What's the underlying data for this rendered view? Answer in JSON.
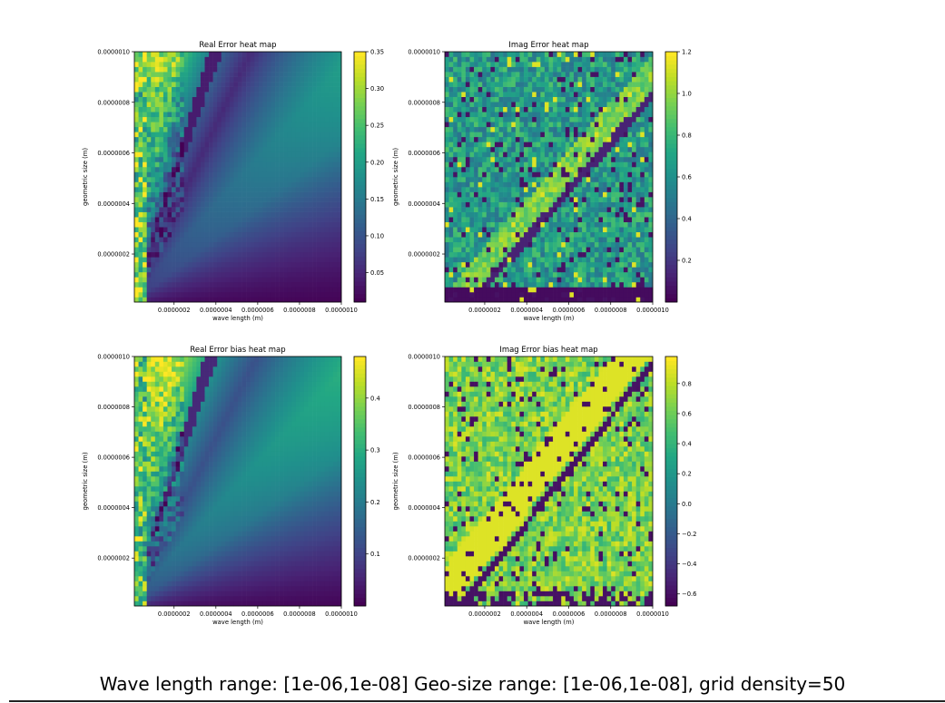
{
  "figure": {
    "caption": "Wave length range: [1e-06,1e-08] Geo-size range: [1e-06,1e-08], grid density=50"
  },
  "chart_data": [
    {
      "type": "heatmap",
      "title": "Real Error heat map",
      "xlabel": "wave length (m)",
      "ylabel": "geometric size (m)",
      "xlim": [
        1e-08,
        1e-06
      ],
      "ylim": [
        1e-08,
        1e-06
      ],
      "x_ticks": [
        "0.0000002",
        "0.0000004",
        "0.0000006",
        "0.0000008",
        "0.0000010"
      ],
      "y_ticks": [
        "0.0000002",
        "0.0000004",
        "0.0000006",
        "0.0000008",
        "0.0000010"
      ],
      "grid_density": 50,
      "colormap": "viridis",
      "colorbar": {
        "range": [
          0.01,
          0.35
        ],
        "ticks": [
          "0.05",
          "0.10",
          "0.15",
          "0.20",
          "0.25",
          "0.30",
          "0.35"
        ]
      }
    },
    {
      "type": "heatmap",
      "title": "Imag Error heat map",
      "xlabel": "wave length (m)",
      "ylabel": "geometric size (m)",
      "xlim": [
        1e-08,
        1e-06
      ],
      "ylim": [
        1e-08,
        1e-06
      ],
      "x_ticks": [
        "0.0000002",
        "0.0000004",
        "0.0000006",
        "0.0000008",
        "0.0000010"
      ],
      "y_ticks": [
        "0.0000002",
        "0.0000004",
        "0.0000006",
        "0.0000008",
        "0.0000010"
      ],
      "grid_density": 50,
      "colormap": "viridis",
      "colorbar": {
        "range": [
          0.0,
          1.2
        ],
        "ticks": [
          "0.2",
          "0.4",
          "0.6",
          "0.8",
          "1.0",
          "1.2"
        ]
      }
    },
    {
      "type": "heatmap",
      "title": "Real Error bias heat map",
      "xlabel": "wave length (m)",
      "ylabel": "geometric size (m)",
      "xlim": [
        1e-08,
        1e-06
      ],
      "ylim": [
        1e-08,
        1e-06
      ],
      "x_ticks": [
        "0.0000002",
        "0.0000004",
        "0.0000006",
        "0.0000008",
        "0.0000010"
      ],
      "y_ticks": [
        "0.0000002",
        "0.0000004",
        "0.0000006",
        "0.0000008",
        "0.0000010"
      ],
      "grid_density": 50,
      "colormap": "viridis",
      "colorbar": {
        "range": [
          0.0,
          0.48
        ],
        "ticks": [
          "0.1",
          "0.2",
          "0.3",
          "0.4"
        ]
      }
    },
    {
      "type": "heatmap",
      "title": "Imag Error bias heat map",
      "xlabel": "wave length (m)",
      "ylabel": "geometric size (m)",
      "xlim": [
        1e-08,
        1e-06
      ],
      "ylim": [
        1e-08,
        1e-06
      ],
      "x_ticks": [
        "0.0000002",
        "0.0000004",
        "0.0000006",
        "0.0000008",
        "0.0000010"
      ],
      "y_ticks": [
        "0.0000002",
        "0.0000004",
        "0.0000006",
        "0.0000008",
        "0.0000010"
      ],
      "grid_density": 50,
      "colormap": "viridis",
      "colorbar": {
        "range": [
          -0.68,
          0.98
        ],
        "ticks": [
          "-0.6",
          "-0.4",
          "-0.2",
          "0.0",
          "0.2",
          "0.4",
          "0.6",
          "0.8"
        ]
      }
    }
  ]
}
